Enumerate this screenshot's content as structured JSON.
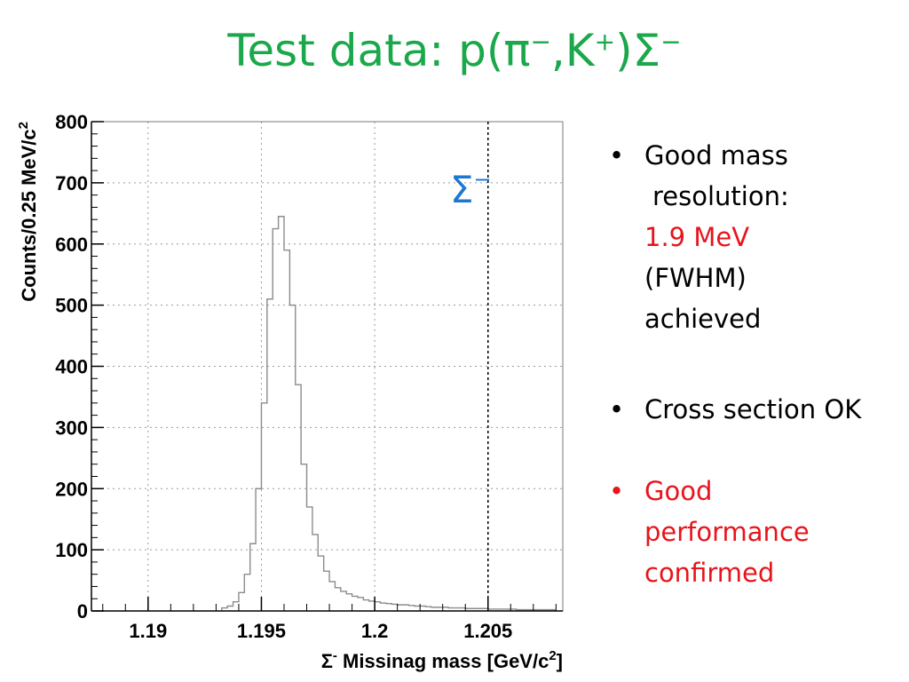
{
  "title": {
    "prefix": "Test data: p(",
    "pi": "π",
    "pi_sup": "−",
    "comma_k": ",K",
    "k_sup": "+",
    "close_sigma": ")Σ",
    "sigma_sup": "−"
  },
  "bullets": [
    {
      "line1": "Good mass",
      "line2": "resolution:",
      "highlight": "1.9 MeV",
      "line4": "(FWHM)",
      "line5": "achieved",
      "color": "#000000"
    },
    {
      "text": "Cross section OK",
      "color": "#000000"
    },
    {
      "line1": "Good",
      "line2": "performance",
      "line3": "confirmed",
      "color": "#e8141c"
    }
  ],
  "chart_data": {
    "type": "histogram",
    "xlabel_prefix": "Σ",
    "xlabel_sup": "-",
    "xlabel_main": " Missinag mass [GeV/c",
    "xlabel_unit_sup": "2",
    "xlabel_end": "]",
    "ylabel_main": "Counts/0.25 MeV/c",
    "ylabel_sup": "2",
    "xlim": [
      1.1875,
      1.2083
    ],
    "ylim": [
      0,
      800
    ],
    "x_ticks": [
      {
        "value": 1.19,
        "label": "1.19"
      },
      {
        "value": 1.195,
        "label": "1.195"
      },
      {
        "value": 1.2,
        "label": "1.2"
      },
      {
        "value": 1.205,
        "label": "1.205"
      }
    ],
    "y_ticks": [
      {
        "value": 0,
        "label": "0"
      },
      {
        "value": 100,
        "label": "100"
      },
      {
        "value": 200,
        "label": "200"
      },
      {
        "value": 300,
        "label": "300"
      },
      {
        "value": 400,
        "label": "400"
      },
      {
        "value": 500,
        "label": "500"
      },
      {
        "value": 600,
        "label": "600"
      },
      {
        "value": 700,
        "label": "700"
      },
      {
        "value": 800,
        "label": "800"
      }
    ],
    "grid": true,
    "bin_edges": [
      1.19325,
      1.1935,
      1.19375,
      1.194,
      1.19425,
      1.1945,
      1.19475,
      1.195,
      1.19525,
      1.1955,
      1.19575,
      1.196,
      1.19625,
      1.1965,
      1.19675,
      1.197,
      1.19725,
      1.1975,
      1.19775,
      1.198,
      1.19825,
      1.1985,
      1.19875,
      1.199,
      1.19925,
      1.1995,
      1.19975,
      1.2,
      1.20025,
      1.2005,
      1.20075,
      1.201,
      1.20125,
      1.2015,
      1.20175,
      1.202,
      1.20225,
      1.2025,
      1.20275,
      1.203,
      1.20325,
      1.2035,
      1.20375,
      1.204,
      1.20425,
      1.2045,
      1.20475,
      1.205,
      1.20525,
      1.2055,
      1.20575,
      1.206,
      1.20625,
      1.2065,
      1.20675,
      1.207,
      1.20725,
      1.2075,
      1.20775,
      1.208
    ],
    "counts": [
      5,
      8,
      15,
      30,
      60,
      110,
      200,
      340,
      510,
      625,
      645,
      590,
      500,
      370,
      240,
      170,
      125,
      90,
      65,
      48,
      38,
      32,
      28,
      24,
      22,
      18,
      16,
      15,
      13,
      12,
      11,
      10,
      10,
      9,
      8,
      8,
      7,
      6,
      6,
      6,
      5,
      5,
      5,
      4,
      4,
      4,
      4,
      3,
      3,
      3,
      3,
      3,
      2,
      2,
      2,
      2,
      2,
      2,
      2
    ],
    "marker_x": 1.205,
    "annotation": {
      "text": "Σ",
      "sup": "−",
      "color": "#1e78d2"
    }
  }
}
